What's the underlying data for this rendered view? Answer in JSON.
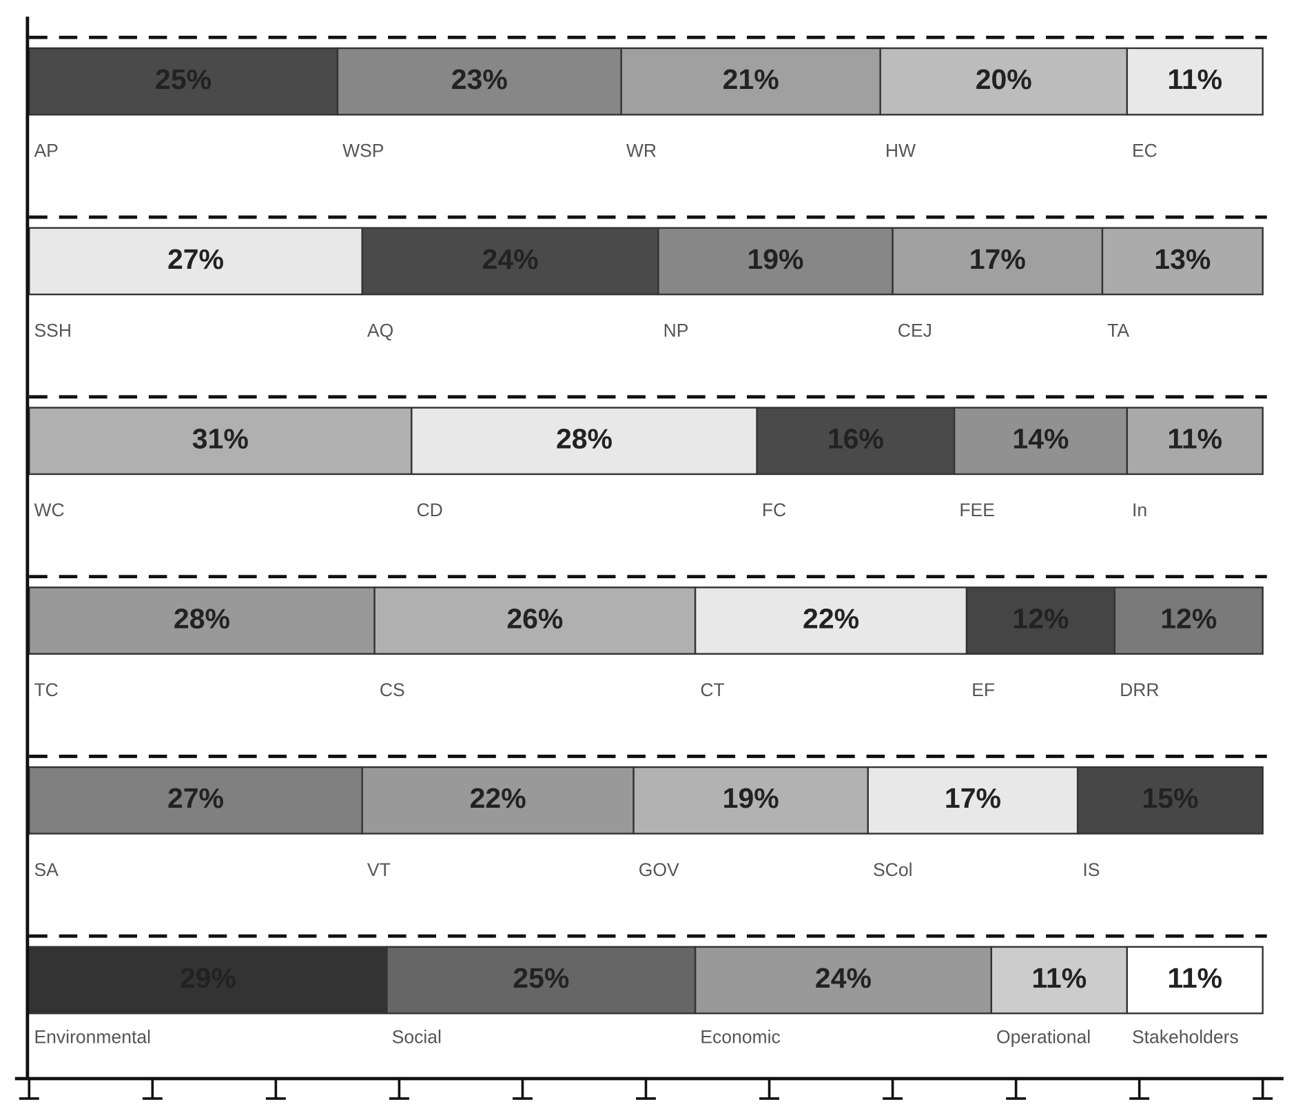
{
  "chart_data": {
    "type": "stacked-bar-rows",
    "xlim": [
      0,
      100
    ],
    "xticks": [
      0,
      10,
      20,
      30,
      40,
      50,
      60,
      70,
      80,
      90,
      100
    ],
    "separators": "dashed",
    "rows": [
      {
        "categories": [
          "AP",
          "WSP",
          "WR",
          "HW",
          "EC"
        ],
        "values": [
          25,
          23,
          21,
          20,
          11
        ],
        "value_labels": [
          "25%",
          "23%",
          "21%",
          "20%",
          "11%"
        ],
        "colors": [
          "#4a4a4a",
          "#878787",
          "#a0a0a0",
          "#bcbcbc",
          "#e8e8e8"
        ]
      },
      {
        "categories": [
          "SSH",
          "AQ",
          "NP",
          "CEJ",
          "TA"
        ],
        "values": [
          27,
          24,
          19,
          17,
          13
        ],
        "value_labels": [
          "27%",
          "24%",
          "19%",
          "17%",
          "13%"
        ],
        "colors": [
          "#e8e8e8",
          "#4a4a4a",
          "#878787",
          "#a0a0a0",
          "#ababab"
        ]
      },
      {
        "categories": [
          "WC",
          "CD",
          "FC",
          "FEE",
          "In"
        ],
        "values": [
          31,
          28,
          16,
          14,
          11
        ],
        "value_labels": [
          "31%",
          "28%",
          "16%",
          "14%",
          "11%"
        ],
        "colors": [
          "#b0b0b0",
          "#e8e8e8",
          "#4a4a4a",
          "#919191",
          "#a9a9a9"
        ]
      },
      {
        "categories": [
          "TC",
          "CS",
          "CT",
          "EF",
          "DRR"
        ],
        "values": [
          28,
          26,
          22,
          12,
          12
        ],
        "value_labels": [
          "28%",
          "26%",
          "22%",
          "12%",
          "12%"
        ],
        "colors": [
          "#999999",
          "#b0b0b0",
          "#e8e8e8",
          "#454545",
          "#7a7a7a"
        ]
      },
      {
        "categories": [
          "SA",
          "VT",
          "GOV",
          "SCol",
          "IS"
        ],
        "values": [
          27,
          22,
          19,
          17,
          15
        ],
        "value_labels": [
          "27%",
          "22%",
          "19%",
          "17%",
          "15%"
        ],
        "colors": [
          "#808080",
          "#999999",
          "#b2b2b2",
          "#e8e8e8",
          "#474747"
        ]
      },
      {
        "categories": [
          "Environmental",
          "Social",
          "Economic",
          "Operational",
          "Stakeholders"
        ],
        "values": [
          29,
          25,
          24,
          11,
          11
        ],
        "value_labels": [
          "29%",
          "25%",
          "24%",
          "11%",
          "11%"
        ],
        "colors": [
          "#333333",
          "#666666",
          "#999999",
          "#cccccc",
          "#ffffff"
        ]
      }
    ]
  }
}
